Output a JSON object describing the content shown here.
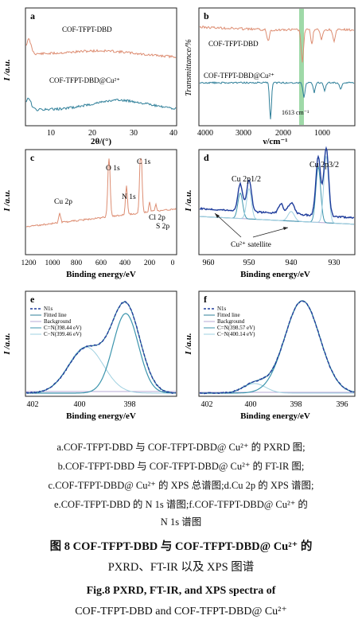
{
  "panels": {
    "a": {
      "label": "a",
      "ylabel": "I /a.u.",
      "xlabel": "2θ/(°)",
      "xticks": [
        "10",
        "20",
        "30",
        "40"
      ],
      "series_labels": [
        "COF-TFPT-DBD",
        "COF-TFPT-DBD@Cu²⁺"
      ]
    },
    "b": {
      "label": "b",
      "ylabel": "Transmittance/%",
      "xlabel": "ν/cm⁻¹",
      "xticks": [
        "4000",
        "3000",
        "2000",
        "1000"
      ],
      "series_labels": [
        "COF-TFPT-DBD",
        "COF-TFPT-DBD@Cu²⁺"
      ],
      "annotation": "1613 cm⁻¹"
    },
    "c": {
      "label": "c",
      "ylabel": "I /a.u.",
      "xlabel": "Binding energy/eV",
      "xticks": [
        "1200",
        "1000",
        "800",
        "600",
        "400",
        "200",
        "0"
      ],
      "peak_labels": [
        "Cu 2p",
        "O 1s",
        "N 1s",
        "C 1s",
        "Cl 2p",
        "S 2p"
      ]
    },
    "d": {
      "label": "d",
      "ylabel": "I /a.u.",
      "xlabel": "Binding energy/eV",
      "xticks": [
        "960",
        "950",
        "940",
        "930"
      ],
      "peak_labels": [
        "Cu 2p1/2",
        "Cu 2p3/2"
      ],
      "annotation": "Cu²⁺ satellite"
    },
    "e": {
      "label": "e",
      "ylabel": "I /a.u.",
      "xlabel": "Binding energy/eV",
      "xticks": [
        "402",
        "400",
        "398"
      ],
      "legend": [
        "N1s",
        "Fitted line",
        "Background",
        "C=N(398.44 eV)",
        "C−N(399.46 eV)"
      ]
    },
    "f": {
      "label": "f",
      "ylabel": "I /a.u.",
      "xlabel": "Binding energy/eV",
      "xticks": [
        "402",
        "400",
        "398",
        "396"
      ],
      "legend": [
        "N1s",
        "Fitted line",
        "Background",
        "C=N(398.57 eV)",
        "C−N(400.14 eV)"
      ]
    }
  },
  "caption": {
    "line1": "a.COF-TFPT-DBD 与 COF-TFPT-DBD@ Cu²⁺ 的 PXRD 图;",
    "line2": "b.COF-TFPT-DBD 与 COF-TFPT-DBD@ Cu²⁺ 的 FT-IR 图;",
    "line3": "c.COF-TFPT-DBD@ Cu²⁺ 的 XPS 总谱图;d.Cu 2p 的 XPS 谱图;",
    "line4": "e.COF-TFPT-DBD 的 N 1s 谱图;f.COF-TFPT-DBD@ Cu²⁺ 的",
    "line5": "N 1s 谱图",
    "title_cn_1": "图 8   COF-TFPT-DBD 与 COF-TFPT-DBD@ Cu²⁺ 的",
    "title_cn_2": "PXRD、FT-IR 以及 XPS 图谱",
    "title_en_1": "Fig.8   PXRD, FT-IR, and XPS spectra of",
    "title_en_2": "COF-TFPT-DBD and COF-TFPT-DBD@ Cu²⁺"
  },
  "colors": {
    "salmon": "#dd8d72",
    "teal": "#2f7f99",
    "blue": "#1f3d9c",
    "lightblue": "#9fd0e0",
    "midteal": "#3c95ad",
    "lilac": "#b7a9d6",
    "green_band": "#9fd9a8"
  }
}
